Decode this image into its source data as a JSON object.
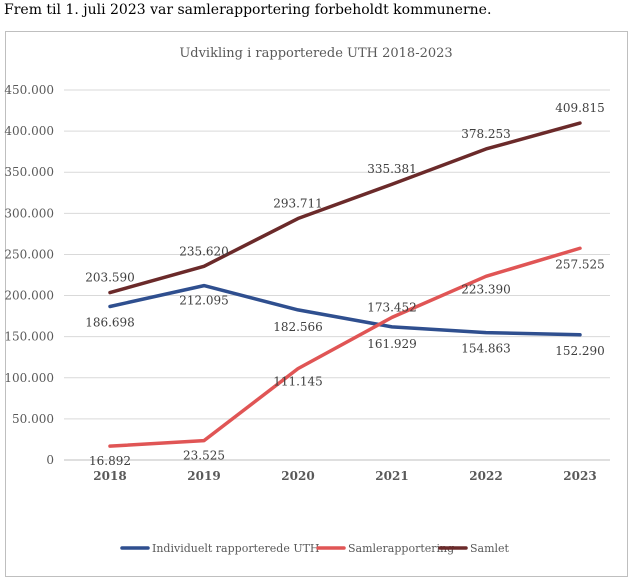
{
  "intro_text": "Frem til 1. juli 2023 var samlerapportering forbeholdt kommunerne.",
  "chart_data": {
    "type": "line",
    "title": "Udvikling i rapporterede UTH 2018-2023",
    "xlabel": "",
    "ylabel": "",
    "categories": [
      "2018",
      "2019",
      "2020",
      "2021",
      "2022",
      "2023"
    ],
    "ylim": [
      0,
      450000
    ],
    "yticks": [
      0,
      50000,
      100000,
      150000,
      200000,
      250000,
      300000,
      350000,
      400000,
      450000
    ],
    "ytick_labels": [
      "0",
      "50.000",
      "100.000",
      "150.000",
      "200.000",
      "250.000",
      "300.000",
      "350.000",
      "400.000",
      "450.000"
    ],
    "grid": true,
    "legend_position": "bottom",
    "series": [
      {
        "name": "Individuelt rapporterede UTH",
        "color": "#2f4f8f",
        "values": [
          186698,
          212095,
          182566,
          161929,
          154863,
          152290
        ],
        "labels": [
          "186.698",
          "212.095",
          "182.566",
          "161.929",
          "154.863",
          "152.290"
        ]
      },
      {
        "name": "Samlerapportering",
        "color": "#e05555",
        "values": [
          16892,
          23525,
          111145,
          173452,
          223390,
          257525
        ],
        "labels": [
          "16.892",
          "23.525",
          "111.145",
          "173.452",
          "223.390",
          "257.525"
        ]
      },
      {
        "name": "Samlet",
        "color": "#6b2a2a",
        "values": [
          203590,
          235620,
          293711,
          335381,
          378253,
          409815
        ],
        "labels": [
          "203.590",
          "235.620",
          "293.711",
          "335.381",
          "378.253",
          "409.815"
        ]
      }
    ]
  }
}
